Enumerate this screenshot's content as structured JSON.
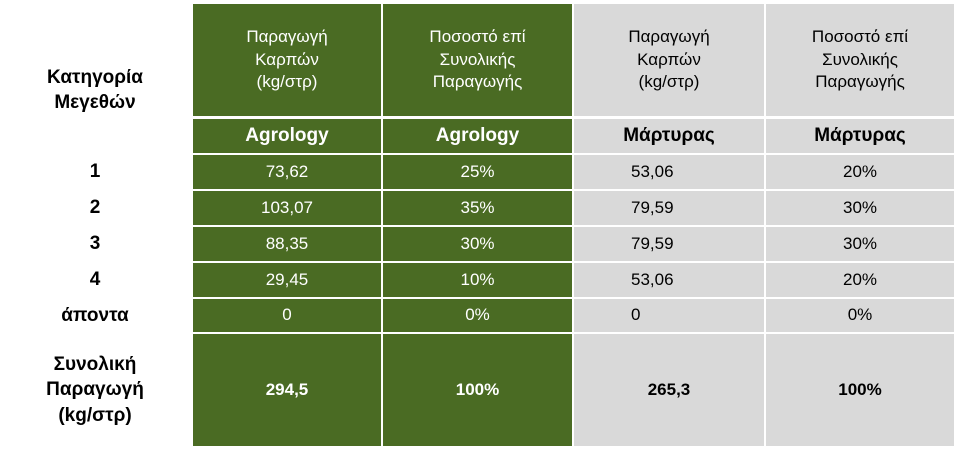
{
  "colors": {
    "green": "#4a6b23",
    "gray": "#d9d9d9",
    "divider": "#ffffff"
  },
  "table": {
    "category_header": "Κατηγορία\nΜεγεθών",
    "column_headers": [
      "Παραγωγή\nΚαρπών\n(kg/στρ)",
      "Ποσοστό επί\nΣυνολικής\nΠαραγωγής",
      "Παραγωγή\nΚαρπών\n(kg/στρ)",
      "Ποσοστό επί\nΣυνολικής\nΠαραγωγής"
    ],
    "sub_headers": [
      "Agrology",
      "Agrology",
      "Μάρτυρας",
      "Μάρτυρας"
    ],
    "rows": [
      {
        "label": "1",
        "values": [
          "73,62",
          "25%",
          "53,06",
          "20%"
        ]
      },
      {
        "label": "2",
        "values": [
          "103,07",
          "35%",
          "79,59",
          "30%"
        ]
      },
      {
        "label": "3",
        "values": [
          "88,35",
          "30%",
          "79,59",
          "30%"
        ]
      },
      {
        "label": "4",
        "values": [
          "29,45",
          "10%",
          "53,06",
          "20%"
        ]
      },
      {
        "label": "άποντα",
        "values": [
          "0",
          "0%",
          "0",
          "0%"
        ]
      }
    ],
    "total": {
      "label": "Συνολική\nΠαραγωγή\n(kg/στρ)",
      "values": [
        "294,5",
        "100%",
        "265,3",
        "100%"
      ]
    }
  }
}
